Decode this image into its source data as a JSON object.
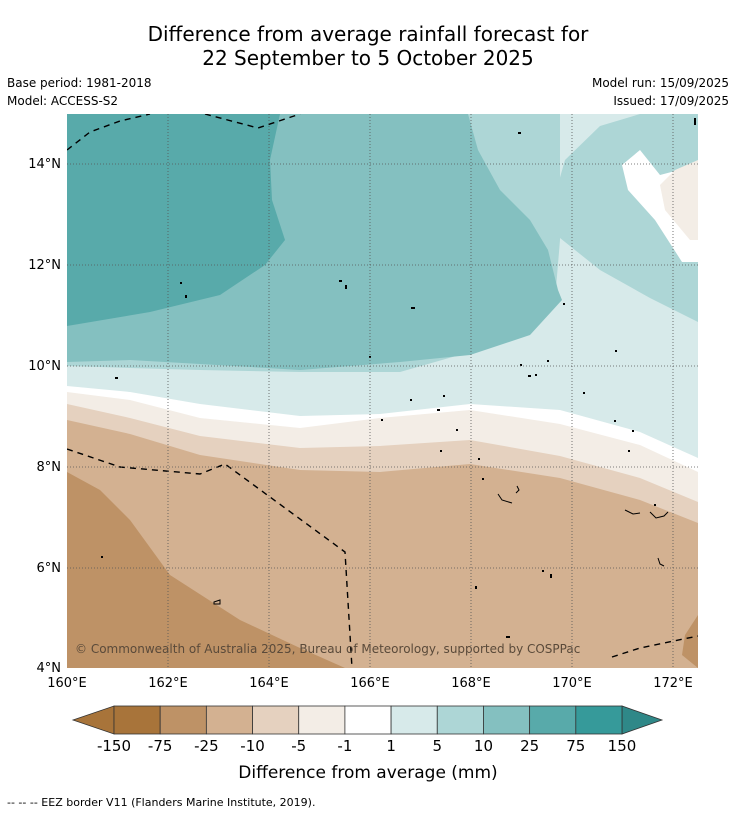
{
  "header": {
    "title_line1": "Difference from average rainfall forecast for",
    "title_line2": "22 September to 5 October 2025",
    "base_period": "Base period: 1981-2018",
    "model": "Model: ACCESS-S2",
    "model_run": "Model run: 15/09/2025",
    "issued": "Issued: 17/09/2025"
  },
  "map": {
    "latitude_labels": [
      "14°N",
      "12°N",
      "10°N",
      "8°N",
      "6°N",
      "4°N"
    ],
    "longitude_labels": [
      "160°E",
      "162°E",
      "164°E",
      "166°E",
      "168°E",
      "170°E",
      "172°E"
    ],
    "copyright": "© Commonwealth of Australia 2025, Bureau of Meteorology, supported by COSPPac"
  },
  "colorbar": {
    "title": "Difference from average (mm)",
    "labels": [
      "-150",
      "-75",
      "-25",
      "-10",
      "-5",
      "-1",
      "1",
      "5",
      "10",
      "25",
      "75",
      "150"
    ],
    "colors": [
      "#a8743a",
      "#be9266",
      "#d3b191",
      "#e5d1bf",
      "#f3ede6",
      "#ffffff",
      "#d7eaea",
      "#add6d6",
      "#84c0c0",
      "#58aaaa",
      "#369a9a"
    ],
    "extend_low_color": "#a8743a",
    "extend_high_color": "#2f8888"
  },
  "footer": {
    "legend": "--  --  -- EEZ border V11 (Flanders Marine Institute, 2019)."
  }
}
